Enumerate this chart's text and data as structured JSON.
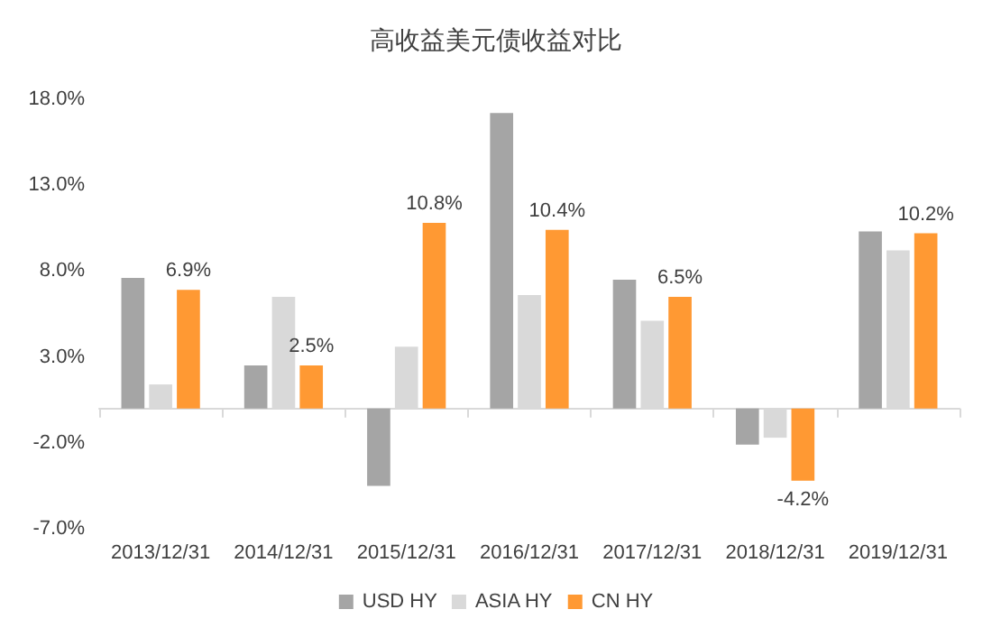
{
  "chart_data": {
    "type": "bar",
    "title": "高收益美元债收益对比",
    "categories": [
      "2013/12/31",
      "2014/12/31",
      "2015/12/31",
      "2016/12/31",
      "2017/12/31",
      "2018/12/31",
      "2019/12/31"
    ],
    "series": [
      {
        "name": "USD HY",
        "color": "#a5a5a5",
        "values": [
          7.6,
          2.5,
          -4.5,
          17.2,
          7.5,
          -2.1,
          10.3
        ]
      },
      {
        "name": "ASIA HY",
        "color": "#d9d9d9",
        "values": [
          1.4,
          6.5,
          3.6,
          6.6,
          5.1,
          -1.7,
          9.2
        ]
      },
      {
        "name": "CN HY",
        "color": "#ff9933",
        "values": [
          6.9,
          2.5,
          10.8,
          10.4,
          6.5,
          -4.2,
          10.2
        ],
        "value_labels": [
          "6.9%",
          "2.5%",
          "10.8%",
          "10.4%",
          "6.5%",
          "-4.2%",
          "10.2%"
        ]
      }
    ],
    "ylim": [
      -7,
      18
    ],
    "yticks": [
      {
        "value": -7,
        "label": "-7.0%"
      },
      {
        "value": -2,
        "label": "-2.0%"
      },
      {
        "value": 3,
        "label": "3.0%"
      },
      {
        "value": 8,
        "label": "8.0%"
      },
      {
        "value": 13,
        "label": "13.0%"
      },
      {
        "value": 18,
        "label": "18.0%"
      }
    ],
    "grid": false,
    "legend": "bottom"
  }
}
